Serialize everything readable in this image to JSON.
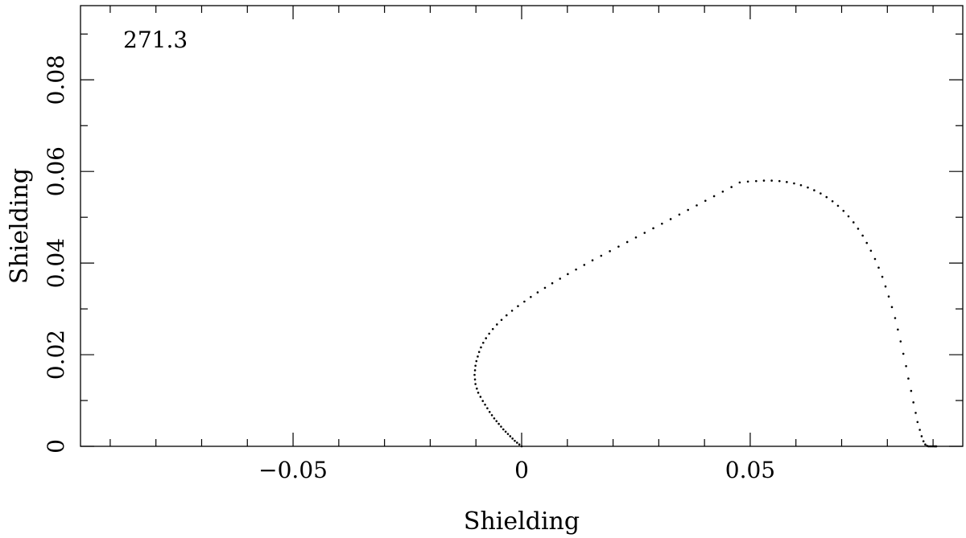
{
  "chart_data": {
    "type": "scatter",
    "title": "",
    "annotation": "271.3",
    "xlabel": "Shielding",
    "ylabel": "Shielding",
    "xlim": [
      -0.0965,
      0.0965
    ],
    "ylim": [
      0,
      0.0962
    ],
    "x_major_ticks": [
      -0.05,
      0,
      0.05
    ],
    "x_tick_labels": [
      "−0.05",
      "0",
      "0.05"
    ],
    "x_minor_step": 0.01,
    "y_major_ticks": [
      0,
      0.02,
      0.04,
      0.06,
      0.08
    ],
    "y_tick_labels": [
      "0",
      "0.02",
      "0.04",
      "0.06",
      "0.08"
    ],
    "y_minor_step": 0.01,
    "grid": false,
    "series": [
      {
        "x": [
          0,
          -0.0005,
          -0.001,
          -0.0015,
          -0.002,
          -0.0025,
          -0.003,
          -0.0035,
          -0.004,
          -0.0045,
          -0.005,
          -0.0055,
          -0.006,
          -0.0065,
          -0.007,
          -0.0075,
          -0.008,
          -0.0085,
          -0.009,
          -0.0095,
          -0.0098,
          -0.0101,
          -0.0102,
          -0.0103,
          -0.0102,
          -0.0101,
          -0.0099,
          -0.0096,
          -0.0093,
          -0.0089,
          -0.0084,
          -0.0078,
          -0.0071,
          -0.0063,
          -0.0054,
          -0.0044,
          -0.0033,
          -0.0021,
          -0.0008,
          0.0006,
          0.002,
          0.0035,
          0.0051,
          0.0067,
          0.0084,
          0.0101,
          0.0119,
          0.0137,
          0.0155,
          0.0174,
          0.0193,
          0.0212,
          0.0231,
          0.025,
          0.0269,
          0.0288,
          0.0307,
          0.0326,
          0.0345,
          0.0364,
          0.0383,
          0.0402,
          0.0421,
          0.044,
          0.0459,
          0.0477,
          0.0495,
          0.0513,
          0.053,
          0.0547,
          0.0564,
          0.058,
          0.0596,
          0.0611,
          0.0626,
          0.064,
          0.0654,
          0.0667,
          0.068,
          0.0692,
          0.0704,
          0.0715,
          0.0726,
          0.0736,
          0.0746,
          0.0755,
          0.0764,
          0.0773,
          0.0781,
          0.0789,
          0.0796,
          0.0803,
          0.081,
          0.0817,
          0.0823,
          0.0829,
          0.0835,
          0.0841,
          0.0846,
          0.0852,
          0.0857,
          0.0862,
          0.0866,
          0.0871,
          0.0875,
          0.0879,
          0.0883,
          0.0887,
          0.089,
          0.0893,
          0.0896,
          0.0899,
          0.0902,
          0.0904,
          0.0906,
          0.0907
        ],
        "y": [
          0,
          0.0004,
          0.0008,
          0.0012,
          0.0017,
          0.0022,
          0.0027,
          0.0032,
          0.0037,
          0.0043,
          0.0049,
          0.0055,
          0.0061,
          0.0068,
          0.0075,
          0.0083,
          0.0091,
          0.0099,
          0.0108,
          0.0117,
          0.0126,
          0.0136,
          0.0146,
          0.0156,
          0.0166,
          0.0176,
          0.0186,
          0.0196,
          0.0206,
          0.0216,
          0.0226,
          0.0236,
          0.0246,
          0.0256,
          0.0266,
          0.0276,
          0.0286,
          0.0296,
          0.0306,
          0.0316,
          0.0326,
          0.0336,
          0.0346,
          0.0356,
          0.0366,
          0.0376,
          0.0386,
          0.0396,
          0.0406,
          0.0416,
          0.0426,
          0.0436,
          0.0446,
          0.0456,
          0.0466,
          0.0476,
          0.0486,
          0.0496,
          0.0506,
          0.0516,
          0.0526,
          0.0536,
          0.0546,
          0.0556,
          0.0566,
          0.0576,
          0.0578,
          0.0579,
          0.058,
          0.058,
          0.0579,
          0.0577,
          0.0574,
          0.057,
          0.0565,
          0.0559,
          0.0552,
          0.0544,
          0.0535,
          0.0525,
          0.0514,
          0.0502,
          0.0489,
          0.0475,
          0.046,
          0.0444,
          0.0427,
          0.0409,
          0.039,
          0.037,
          0.0349,
          0.0327,
          0.0304,
          0.028,
          0.0255,
          0.0229,
          0.0202,
          0.0175,
          0.0148,
          0.0121,
          0.0096,
          0.0073,
          0.0053,
          0.0036,
          0.0022,
          0.0011,
          0.0004,
          0.0001,
          0.0,
          0.0,
          0.0,
          0.0,
          0.0,
          0.0,
          0.0,
          0.0
        ]
      }
    ]
  }
}
